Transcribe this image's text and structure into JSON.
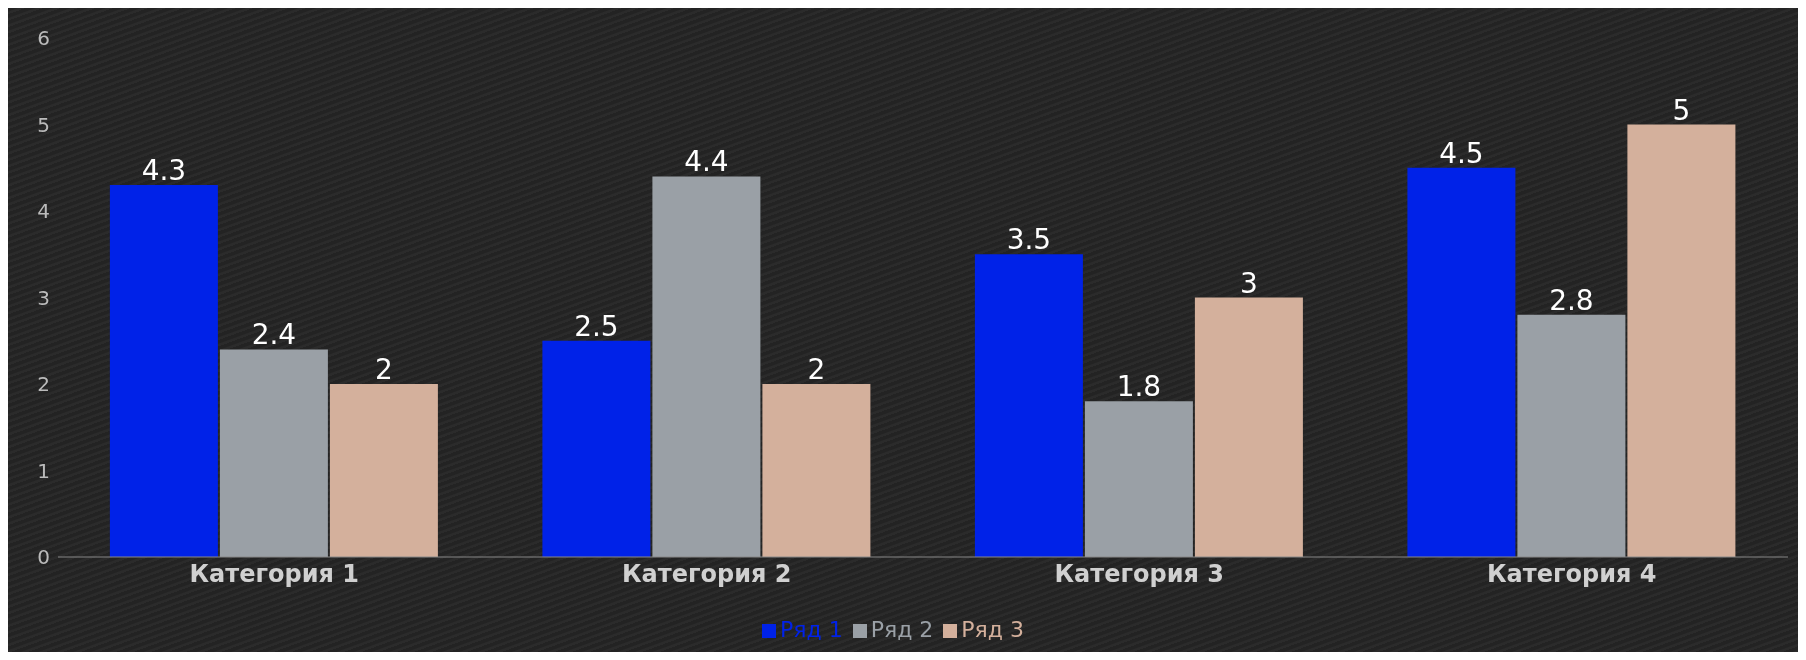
{
  "chart_data": {
    "type": "bar",
    "categories": [
      "Категория 1",
      "Категория 2",
      "Категория 3",
      "Категория 4"
    ],
    "series": [
      {
        "name": "Ряд 1",
        "color": "#0022e8",
        "values": [
          4.3,
          2.5,
          3.5,
          4.5
        ]
      },
      {
        "name": "Ряд 2",
        "color": "#9aa0a6",
        "values": [
          2.4,
          4.4,
          1.8,
          2.8
        ]
      },
      {
        "name": "Ряд 3",
        "color": "#d4b09c",
        "values": [
          2,
          2,
          3,
          5
        ]
      }
    ],
    "ylim": [
      0,
      6
    ],
    "yticks": [
      0,
      1,
      2,
      3,
      4,
      5,
      6
    ],
    "grid": false,
    "legend": "bottom",
    "data_labels": true
  }
}
